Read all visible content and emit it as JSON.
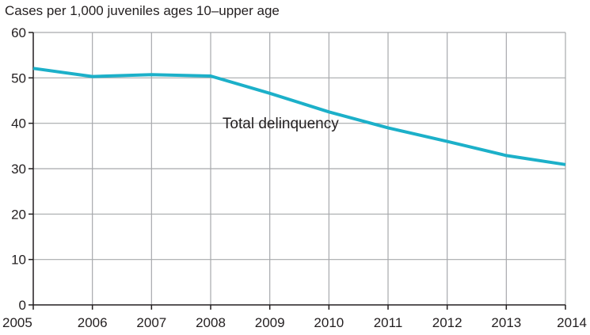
{
  "chart_data": {
    "type": "line",
    "title": "",
    "ylabel": "Cases per 1,000 juveniles ages 10–upper age",
    "xlabel": "",
    "x": [
      2005,
      2006,
      2007,
      2008,
      2009,
      2010,
      2011,
      2012,
      2013,
      2014
    ],
    "xlim": [
      2005,
      2014
    ],
    "ylim": [
      0,
      60
    ],
    "yticks": [
      0,
      10,
      20,
      30,
      40,
      50,
      60
    ],
    "grid": true,
    "series": [
      {
        "name": "Total delinquency",
        "color": "#1cb0c9",
        "values": [
          52.1,
          50.3,
          50.7,
          50.4,
          46.6,
          42.5,
          39.0,
          36.0,
          32.9,
          30.9
        ]
      }
    ]
  }
}
